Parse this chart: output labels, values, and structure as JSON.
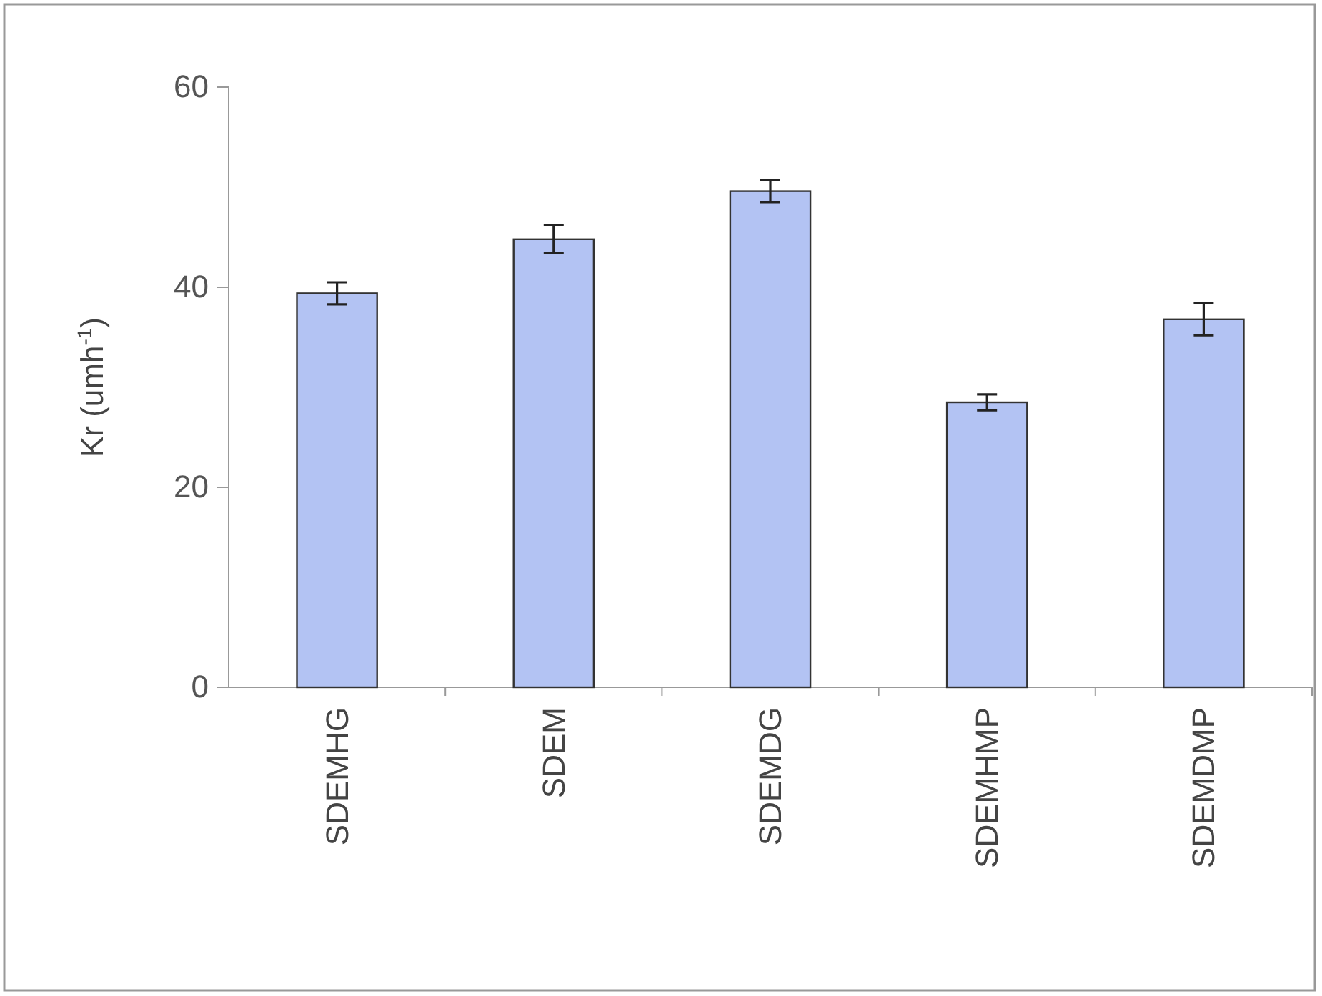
{
  "chart_data": {
    "type": "bar",
    "ylabel": "Kr (umh$^{-1}$)",
    "categories": [
      "SDEMHG",
      "SDEM",
      "SDEMDG",
      "SDEMHMP",
      "SDEMDMP"
    ],
    "series": [
      {
        "color": "#b3c3f3",
        "values": [
          39.4,
          44.8,
          49.6,
          28.5,
          36.8
        ],
        "errors": [
          1.1,
          1.4,
          1.1,
          0.8,
          1.6
        ]
      }
    ],
    "ylim": [
      0,
      60
    ],
    "yticks": [
      0,
      20,
      40,
      60
    ],
    "grid": false
  }
}
